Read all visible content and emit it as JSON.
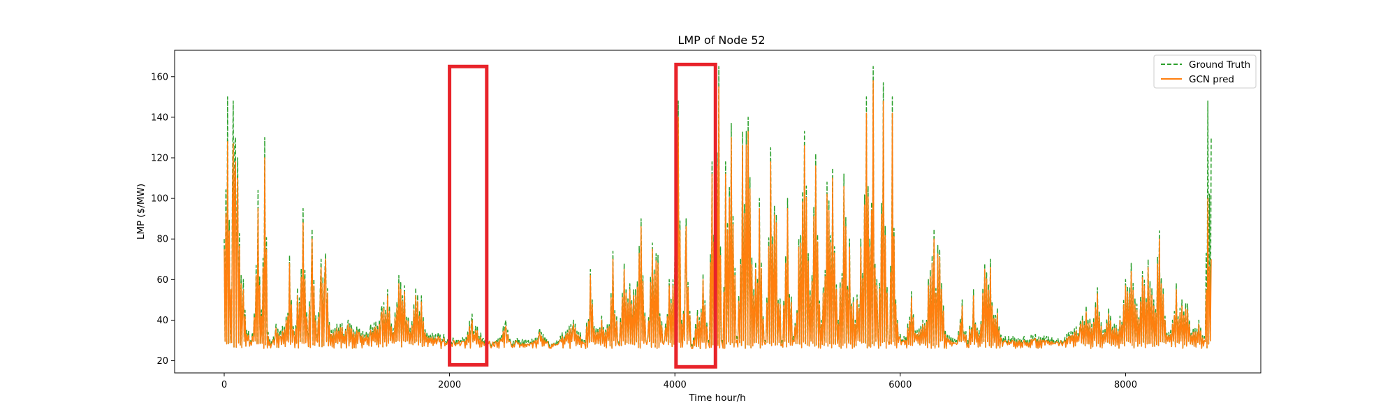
{
  "chart_data": {
    "type": "line",
    "title": "LMP of Node 52",
    "xlabel": "Time hour/h",
    "ylabel": "LMP ($/MW)",
    "xlim": [
      -440,
      9200
    ],
    "ylim": [
      14,
      173
    ],
    "xticks": [
      0,
      2000,
      4000,
      6000,
      8000
    ],
    "yticks": [
      20,
      40,
      60,
      80,
      100,
      120,
      140,
      160
    ],
    "grid": false,
    "legend_position": "top-right",
    "series": [
      {
        "name": "Ground Truth",
        "color": "#2ca02c",
        "style": "dashed",
        "x": [
          0,
          30,
          60,
          80,
          100,
          120,
          150,
          170,
          200,
          250,
          300,
          330,
          360,
          390,
          420,
          460,
          500,
          550,
          580,
          620,
          650,
          700,
          740,
          780,
          820,
          860,
          900,
          950,
          1000,
          1100,
          1200,
          1300,
          1400,
          1450,
          1500,
          1550,
          1600,
          1650,
          1700,
          1750,
          1800,
          1900,
          1950,
          2000,
          2100,
          2200,
          2300,
          2400,
          2500,
          2550,
          2600,
          2700,
          2800,
          2900,
          2950,
          3000,
          3100,
          3200,
          3250,
          3300,
          3350,
          3400,
          3450,
          3500,
          3550,
          3600,
          3650,
          3700,
          3750,
          3800,
          3850,
          3900,
          3950,
          4000,
          4030,
          4060,
          4100,
          4150,
          4200,
          4250,
          4300,
          4330,
          4360,
          4390,
          4420,
          4450,
          4500,
          4550,
          4600,
          4650,
          4700,
          4750,
          4800,
          4850,
          4900,
          4950,
          5000,
          5050,
          5100,
          5150,
          5200,
          5250,
          5300,
          5350,
          5400,
          5450,
          5500,
          5550,
          5600,
          5650,
          5700,
          5730,
          5760,
          5800,
          5850,
          5900,
          5930,
          5960,
          6000,
          6050,
          6100,
          6150,
          6200,
          6250,
          6300,
          6350,
          6400,
          6450,
          6500,
          6550,
          6600,
          6650,
          6700,
          6750,
          6800,
          6900,
          7000,
          7100,
          7200,
          7300,
          7400,
          7500,
          7600,
          7650,
          7700,
          7750,
          7800,
          7850,
          7900,
          7950,
          8000,
          8050,
          8100,
          8150,
          8200,
          8250,
          8300,
          8350,
          8400,
          8450,
          8500,
          8550,
          8600,
          8650,
          8700,
          8730,
          8760
        ],
        "values": [
          80,
          150,
          45,
          148,
          130,
          120,
          62,
          60,
          35,
          34,
          104,
          45,
          130,
          34,
          30,
          38,
          35,
          42,
          72,
          34,
          56,
          95,
          34,
          85,
          32,
          70,
          73,
          35,
          38,
          40,
          36,
          38,
          47,
          55,
          36,
          62,
          57,
          36,
          56,
          52,
          34,
          34,
          33,
          32,
          30,
          43,
          31,
          29,
          40,
          29,
          31,
          30,
          36,
          28,
          30,
          34,
          40,
          30,
          65,
          36,
          42,
          38,
          74,
          30,
          68,
          58,
          55,
          90,
          30,
          78,
          72,
          30,
          60,
          72,
          148,
          40,
          90,
          28,
          45,
          63,
          30,
          118,
          150,
          165,
          30,
          118,
          137,
          32,
          133,
          140,
          55,
          100,
          30,
          125,
          92,
          30,
          100,
          32,
          80,
          133,
          55,
          122,
          40,
          108,
          115,
          40,
          112,
          80,
          40,
          80,
          150,
          80,
          165,
          35,
          157,
          30,
          150,
          50,
          33,
          32,
          54,
          35,
          40,
          60,
          85,
          75,
          35,
          32,
          30,
          50,
          30,
          55,
          35,
          68,
          70,
          32,
          32,
          32,
          33,
          32,
          31,
          34,
          40,
          47,
          38,
          56,
          35,
          46,
          38,
          42,
          60,
          68,
          48,
          64,
          70,
          50,
          84,
          42,
          35,
          58,
          50,
          48,
          36,
          40,
          32,
          148,
          130
        ]
      },
      {
        "name": "GCN pred",
        "color": "#ff7f0e",
        "style": "solid",
        "x": [
          0,
          30,
          60,
          80,
          100,
          120,
          150,
          170,
          200,
          250,
          300,
          330,
          360,
          390,
          420,
          460,
          500,
          550,
          580,
          620,
          650,
          700,
          740,
          780,
          820,
          860,
          900,
          950,
          1000,
          1100,
          1200,
          1300,
          1400,
          1450,
          1500,
          1550,
          1600,
          1650,
          1700,
          1750,
          1800,
          1900,
          1950,
          2000,
          2100,
          2200,
          2300,
          2400,
          2500,
          2550,
          2600,
          2700,
          2800,
          2900,
          2950,
          3000,
          3100,
          3200,
          3250,
          3300,
          3350,
          3400,
          3450,
          3500,
          3550,
          3600,
          3650,
          3700,
          3750,
          3800,
          3850,
          3900,
          3950,
          4000,
          4030,
          4060,
          4100,
          4150,
          4200,
          4250,
          4300,
          4330,
          4360,
          4390,
          4420,
          4450,
          4500,
          4550,
          4600,
          4650,
          4700,
          4750,
          4800,
          4850,
          4900,
          4950,
          5000,
          5050,
          5100,
          5150,
          5200,
          5250,
          5300,
          5350,
          5400,
          5450,
          5500,
          5550,
          5600,
          5650,
          5700,
          5730,
          5760,
          5800,
          5850,
          5900,
          5930,
          5960,
          6000,
          6050,
          6100,
          6150,
          6200,
          6250,
          6300,
          6350,
          6400,
          6450,
          6500,
          6550,
          6600,
          6650,
          6700,
          6750,
          6800,
          6900,
          7000,
          7100,
          7200,
          7300,
          7400,
          7500,
          7600,
          7650,
          7700,
          7750,
          7800,
          7850,
          7900,
          7950,
          8000,
          8050,
          8100,
          8150,
          8200,
          8250,
          8300,
          8350,
          8400,
          8450,
          8500,
          8550,
          8600,
          8650,
          8700,
          8730,
          8760
        ],
        "values": [
          75,
          128,
          55,
          127,
          118,
          110,
          58,
          55,
          33,
          32,
          95,
          42,
          120,
          32,
          28,
          36,
          32,
          40,
          68,
          32,
          52,
          88,
          32,
          80,
          30,
          66,
          70,
          33,
          36,
          38,
          34,
          35,
          44,
          52,
          34,
          58,
          54,
          34,
          52,
          49,
          32,
          32,
          31,
          30,
          28,
          40,
          29,
          27,
          37,
          27,
          29,
          28,
          34,
          26,
          28,
          32,
          38,
          28,
          62,
          34,
          40,
          36,
          70,
          28,
          65,
          55,
          52,
          86,
          28,
          75,
          68,
          28,
          57,
          68,
          140,
          38,
          86,
          26,
          42,
          60,
          28,
          112,
          142,
          155,
          28,
          112,
          130,
          30,
          126,
          133,
          52,
          95,
          28,
          118,
          88,
          28,
          95,
          30,
          76,
          126,
          52,
          116,
          38,
          102,
          110,
          38,
          106,
          76,
          38,
          76,
          142,
          76,
          158,
          33,
          148,
          28,
          142,
          48,
          31,
          30,
          51,
          33,
          38,
          57,
          80,
          71,
          33,
          30,
          28,
          47,
          28,
          52,
          33,
          65,
          66,
          30,
          30,
          30,
          31,
          30,
          29,
          32,
          38,
          44,
          36,
          53,
          33,
          43,
          36,
          40,
          57,
          64,
          45,
          61,
          66,
          47,
          80,
          40,
          33,
          55,
          47,
          45,
          34,
          38,
          30,
          100,
          70
        ]
      }
    ],
    "annotations": [
      {
        "type": "highlight-box",
        "color": "#e8232a",
        "x": [
          2000,
          2330
        ],
        "y": [
          18,
          165
        ]
      },
      {
        "type": "highlight-box",
        "color": "#e8232a",
        "x": [
          4010,
          4360
        ],
        "y": [
          17,
          166
        ]
      }
    ]
  }
}
